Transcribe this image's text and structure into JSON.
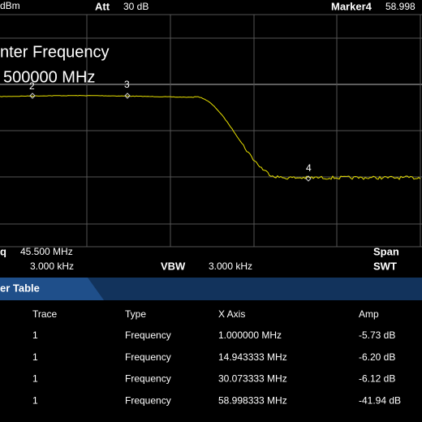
{
  "status_bar": {
    "ref_unit": "dBm",
    "att_label": "Att",
    "att_value": "30 dB",
    "marker_label": "Marker4",
    "marker_value": "58.998"
  },
  "overlay": {
    "line1": "nter Frequency",
    "line2": "500000 MHz"
  },
  "markers": [
    "2",
    "3",
    "4"
  ],
  "settings": {
    "center_label": "q",
    "center_value": "45.500 MHz",
    "span_label": "Span",
    "rbw_value": "3.000 kHz",
    "vbw_label": "VBW",
    "vbw_value": "3.000 kHz",
    "swt_label": "SWT"
  },
  "table": {
    "title": "er Table",
    "columns": [
      "Trace",
      "Type",
      "X Axis",
      "Amp"
    ],
    "rows": [
      [
        "1",
        "Frequency",
        "1.000000 MHz",
        "-5.73 dB"
      ],
      [
        "1",
        "Frequency",
        "14.943333 MHz",
        "-6.20 dB"
      ],
      [
        "1",
        "Frequency",
        "30.073333 MHz",
        "-6.12 dB"
      ],
      [
        "1",
        "Frequency",
        "58.998333 MHz",
        "-41.94 dB"
      ]
    ]
  }
}
